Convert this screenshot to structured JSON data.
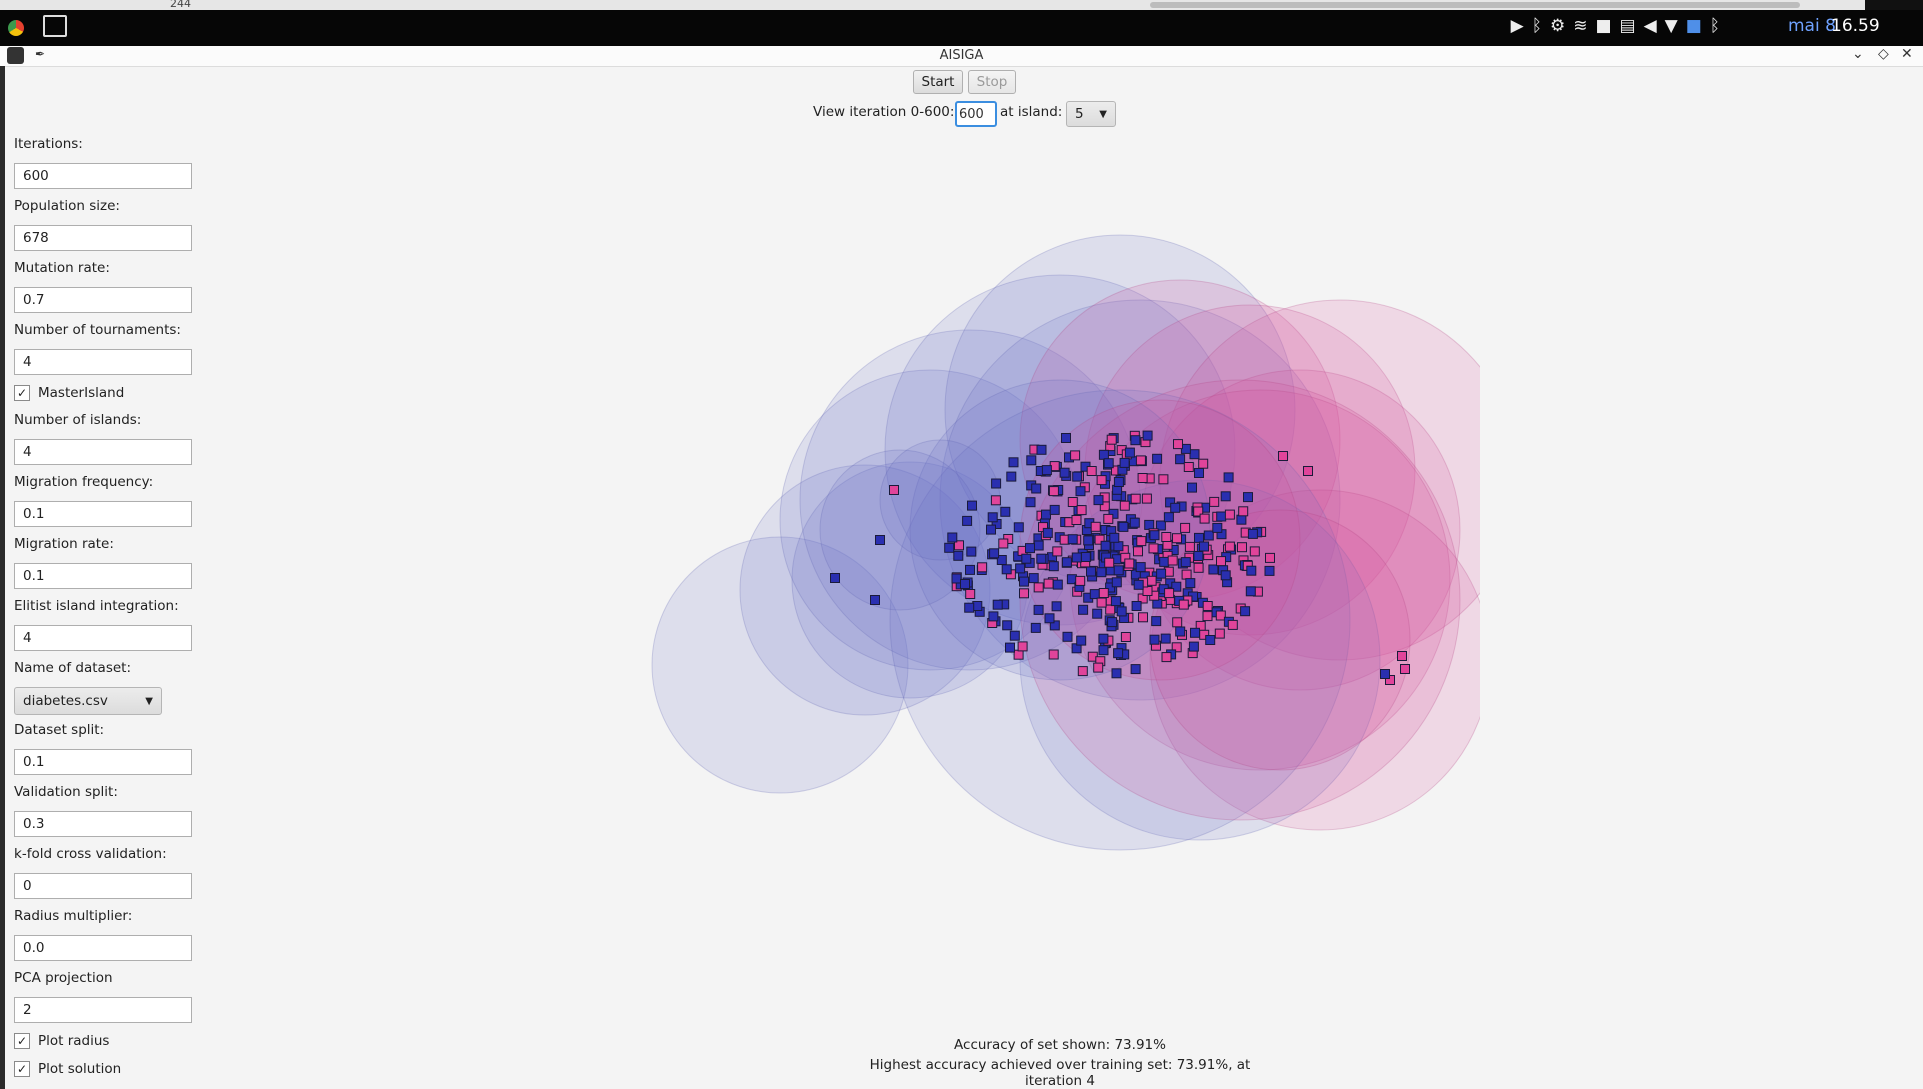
{
  "background_strip": {
    "number": "244"
  },
  "system_panel": {
    "date": "mai 8",
    "time": "16.59"
  },
  "window": {
    "title": "AISIGA"
  },
  "toolbar": {
    "start_label": "Start",
    "stop_label": "Stop",
    "view_iteration_label": "View iteration 0-600:",
    "view_iteration_value": "600",
    "at_island_label": "at island:",
    "island_value": "5"
  },
  "form": {
    "iterations": {
      "label": "Iterations:",
      "value": "600"
    },
    "population_size": {
      "label": "Population size:",
      "value": "678"
    },
    "mutation_rate": {
      "label": "Mutation rate:",
      "value": "0.7"
    },
    "num_tournaments": {
      "label": "Number of tournaments:",
      "value": "4"
    },
    "master_island": {
      "label": "MasterIsland",
      "checked": true
    },
    "num_islands": {
      "label": "Number of islands:",
      "value": "4"
    },
    "migration_frequency": {
      "label": "Migration frequency:",
      "value": "0.1"
    },
    "migration_rate": {
      "label": "Migration rate:",
      "value": "0.1"
    },
    "elitist_island_integration": {
      "label": "Elitist island integration:",
      "value": "4"
    },
    "dataset_name": {
      "label": "Name of dataset:",
      "value": "diabetes.csv"
    },
    "dataset_split": {
      "label": "Dataset split:",
      "value": "0.1"
    },
    "validation_split": {
      "label": "Validation split:",
      "value": "0.3"
    },
    "kfold": {
      "label": "k-fold cross validation:",
      "value": "0"
    },
    "radius_multiplier": {
      "label": "Radius multiplier:",
      "value": "0.0"
    },
    "pca_projection": {
      "label": "PCA projection",
      "value": "2"
    },
    "plot_radius": {
      "label": "Plot radius",
      "checked": true
    },
    "plot_solution": {
      "label": "Plot solution",
      "checked": true
    }
  },
  "plot": {
    "colors": {
      "class_a": "#2a2fb0",
      "class_b": "#e0449a",
      "circle_a": "#6b72c4",
      "circle_b": "#d64e98"
    }
  },
  "footer": {
    "accuracy_shown": "Accuracy of set shown: 73.91%",
    "highest_accuracy": "Highest accuracy achieved over training set: 73.91%, at iteration 4"
  }
}
